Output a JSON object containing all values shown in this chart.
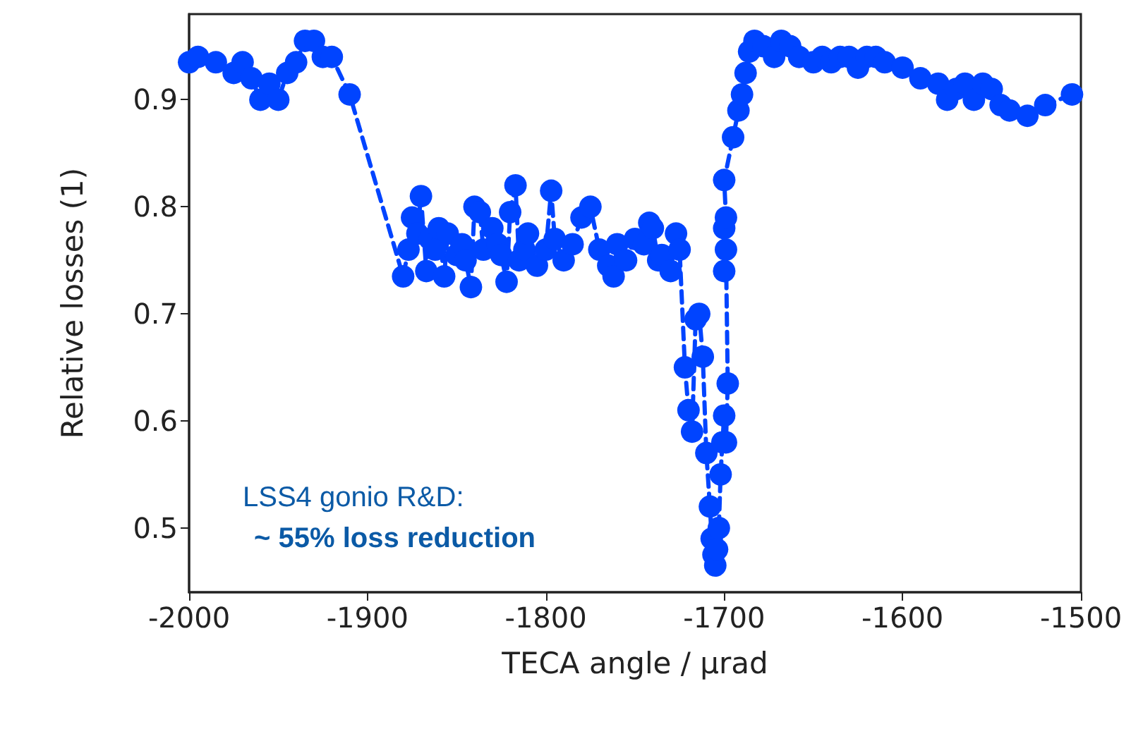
{
  "chart_data": {
    "type": "line",
    "xlabel": "TECA angle / μrad",
    "ylabel": "Relative losses (1)",
    "xlim": [
      -2000,
      -1500
    ],
    "xticks": [
      -2000,
      -1900,
      -1800,
      -1700,
      -1600,
      -1500
    ],
    "ylim": [
      0.44,
      0.98
    ],
    "yticks": [
      0.5,
      0.6,
      0.7,
      0.8,
      0.9
    ],
    "grid": false,
    "marker": "circle",
    "line_style": "dashed",
    "annotations": [
      "LSS4 gonio R&D:",
      "~ 55% loss reduction"
    ],
    "series": [
      {
        "color": "#0044ff",
        "x": [
          -2000,
          -1995,
          -1985,
          -1975,
          -1970,
          -1965,
          -1960,
          -1955,
          -1950,
          -1945,
          -1940,
          -1935,
          -1930,
          -1925,
          -1920,
          -1910,
          -1880,
          -1877,
          -1875,
          -1872,
          -1870,
          -1867,
          -1865,
          -1862,
          -1860,
          -1857,
          -1855,
          -1850,
          -1847,
          -1845,
          -1842,
          -1840,
          -1837,
          -1835,
          -1830,
          -1827,
          -1825,
          -1822,
          -1820,
          -1817,
          -1815,
          -1812,
          -1810,
          -1805,
          -1800,
          -1797,
          -1795,
          -1790,
          -1785,
          -1780,
          -1775,
          -1770,
          -1765,
          -1762,
          -1760,
          -1755,
          -1750,
          -1745,
          -1742,
          -1740,
          -1737,
          -1735,
          -1730,
          -1727,
          -1725,
          -1722,
          -1720,
          -1718,
          -1716,
          -1714,
          -1712,
          -1710,
          -1708,
          -1707,
          -1706,
          -1705,
          -1704,
          -1703,
          -1702,
          -1701,
          -1700,
          -1699,
          -1698,
          -1699,
          -1700,
          -1700,
          -1699,
          -1700,
          -1695,
          -1692,
          -1690,
          -1688,
          -1686,
          -1683,
          -1678,
          -1672,
          -1668,
          -1663,
          -1658,
          -1650,
          -1645,
          -1640,
          -1635,
          -1630,
          -1625,
          -1620,
          -1615,
          -1610,
          -1600,
          -1590,
          -1580,
          -1575,
          -1570,
          -1565,
          -1560,
          -1555,
          -1550,
          -1545,
          -1540,
          -1530,
          -1520,
          -1505
        ],
        "values": [
          0.935,
          0.94,
          0.935,
          0.925,
          0.935,
          0.92,
          0.9,
          0.915,
          0.9,
          0.925,
          0.935,
          0.955,
          0.955,
          0.94,
          0.94,
          0.905,
          0.735,
          0.76,
          0.79,
          0.775,
          0.81,
          0.74,
          0.77,
          0.76,
          0.78,
          0.735,
          0.775,
          0.755,
          0.765,
          0.75,
          0.725,
          0.8,
          0.795,
          0.76,
          0.78,
          0.765,
          0.755,
          0.73,
          0.795,
          0.82,
          0.75,
          0.76,
          0.775,
          0.745,
          0.76,
          0.815,
          0.77,
          0.75,
          0.765,
          0.79,
          0.8,
          0.76,
          0.745,
          0.735,
          0.765,
          0.75,
          0.77,
          0.765,
          0.785,
          0.78,
          0.75,
          0.755,
          0.74,
          0.775,
          0.76,
          0.65,
          0.61,
          0.59,
          0.695,
          0.7,
          0.66,
          0.57,
          0.52,
          0.49,
          0.475,
          0.465,
          0.48,
          0.5,
          0.55,
          0.58,
          0.605,
          0.58,
          0.635,
          0.76,
          0.74,
          0.78,
          0.79,
          0.825,
          0.865,
          0.89,
          0.905,
          0.925,
          0.945,
          0.955,
          0.95,
          0.94,
          0.955,
          0.95,
          0.94,
          0.935,
          0.94,
          0.935,
          0.94,
          0.94,
          0.93,
          0.94,
          0.94,
          0.935,
          0.93,
          0.92,
          0.915,
          0.9,
          0.91,
          0.915,
          0.9,
          0.915,
          0.91,
          0.895,
          0.89,
          0.885,
          0.895,
          0.905
        ]
      }
    ]
  }
}
